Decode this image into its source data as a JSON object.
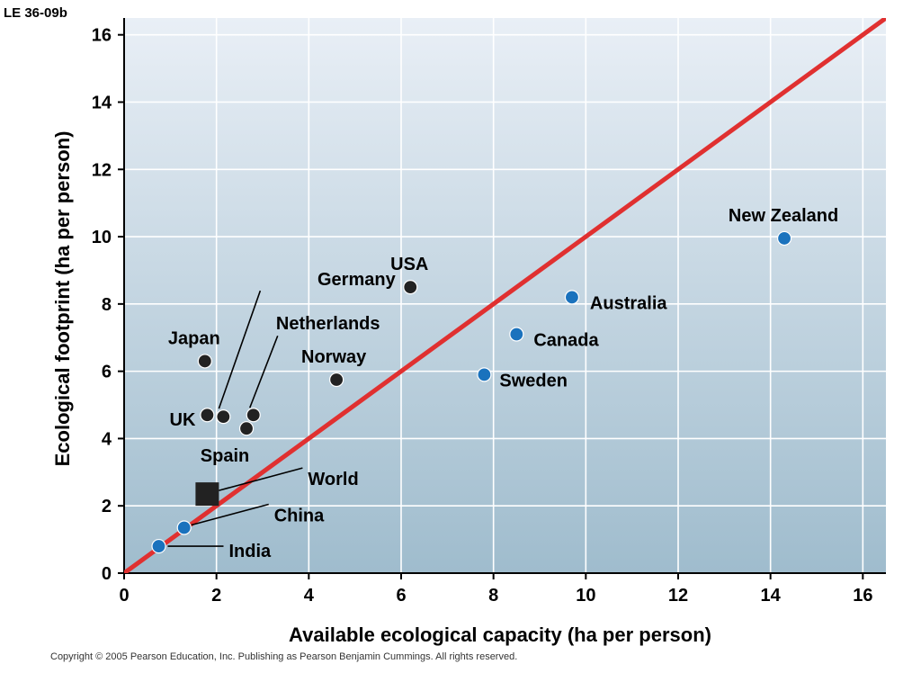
{
  "figure": {
    "label": "LE 36-09b",
    "copyright": "Copyright ©  2005 Pearson Education, Inc. Publishing as Pearson Benjamin Cummings. All rights reserved."
  },
  "colors": {
    "bg_top": "#e9eff6",
    "bg_bottom": "#9fbccd",
    "grid": "#ffffff",
    "parity_line": "#e03030",
    "point_dark": "#222222",
    "point_blue": "#1a72bd"
  },
  "chart_data": {
    "type": "scatter",
    "title": "",
    "xlabel": "Available ecological capacity (ha per person)",
    "ylabel": "Ecological footprint (ha per person)",
    "xlim": [
      0,
      16.5
    ],
    "ylim": [
      0,
      16.5
    ],
    "xticks": [
      0,
      2,
      4,
      6,
      8,
      10,
      12,
      14,
      16
    ],
    "yticks": [
      0,
      2,
      4,
      6,
      8,
      10,
      12,
      14,
      16
    ],
    "grid": true,
    "reference_line": {
      "description": "footprint equals capacity",
      "from": [
        0,
        0
      ],
      "to": [
        16.5,
        16.5
      ]
    },
    "points": [
      {
        "name": "USA",
        "x": 6.2,
        "y": 8.5,
        "group": "dark",
        "marker": "circle"
      },
      {
        "name": "Japan",
        "x": 1.75,
        "y": 6.3,
        "group": "dark",
        "marker": "circle"
      },
      {
        "name": "UK",
        "x": 1.8,
        "y": 4.7,
        "group": "dark",
        "marker": "circle"
      },
      {
        "name": "Germany",
        "x": 2.15,
        "y": 4.65,
        "group": "dark",
        "marker": "circle"
      },
      {
        "name": "Netherlands",
        "x": 2.8,
        "y": 4.7,
        "group": "dark",
        "marker": "circle"
      },
      {
        "name": "Spain",
        "x": 2.65,
        "y": 4.3,
        "group": "dark",
        "marker": "circle"
      },
      {
        "name": "Norway",
        "x": 4.6,
        "y": 5.75,
        "group": "dark",
        "marker": "circle"
      },
      {
        "name": "World",
        "x": 1.8,
        "y": 2.35,
        "group": "dark",
        "marker": "square"
      },
      {
        "name": "China",
        "x": 1.3,
        "y": 1.35,
        "group": "blue",
        "marker": "circle"
      },
      {
        "name": "India",
        "x": 0.75,
        "y": 0.8,
        "group": "blue",
        "marker": "circle"
      },
      {
        "name": "Sweden",
        "x": 7.8,
        "y": 5.9,
        "group": "blue",
        "marker": "circle"
      },
      {
        "name": "Canada",
        "x": 8.5,
        "y": 7.1,
        "group": "blue",
        "marker": "circle"
      },
      {
        "name": "Australia",
        "x": 9.7,
        "y": 8.2,
        "group": "blue",
        "marker": "circle"
      },
      {
        "name": "New Zealand",
        "x": 14.3,
        "y": 9.95,
        "group": "blue",
        "marker": "circle"
      }
    ]
  }
}
